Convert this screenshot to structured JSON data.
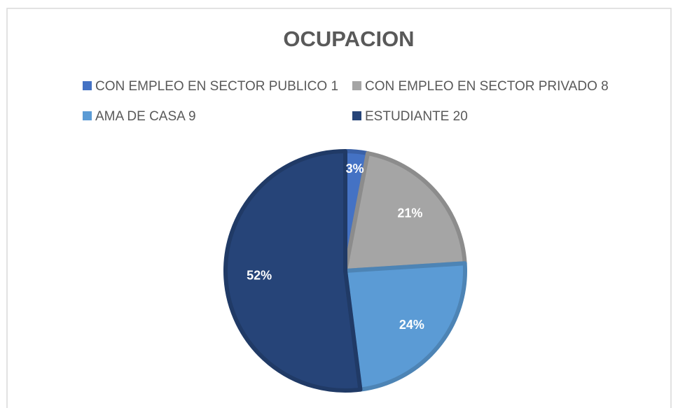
{
  "chart_data": {
    "type": "pie",
    "title": "OCUPACION",
    "categories": [
      "CON EMPLEO EN SECTOR PUBLICO 1",
      "CON EMPLEO EN SECTOR PRIVADO 8",
      "AMA DE CASA 9",
      "ESTUDIANTE 20"
    ],
    "values": [
      3,
      21,
      24,
      52
    ],
    "value_labels": [
      "3%",
      "21%",
      "24%",
      "52%"
    ],
    "colors": [
      "#4472c4",
      "#a5a5a5",
      "#5b9bd5",
      "#264478"
    ],
    "legend": "top"
  }
}
